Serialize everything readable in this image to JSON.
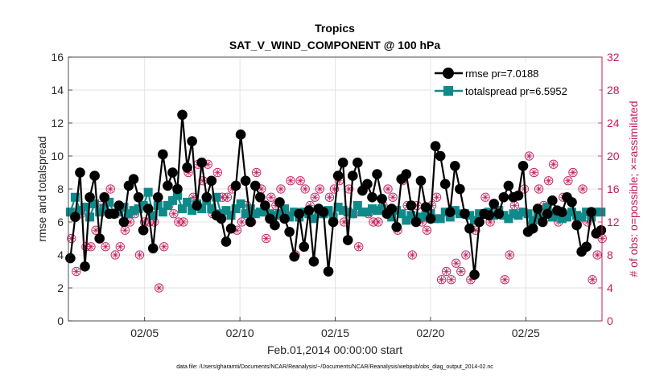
{
  "chart_data": {
    "type": "line",
    "title": "Tropics",
    "subtitle": "SAT_V_WIND_COMPONENT @ 100 hPa",
    "xlabel": "Feb.01,2014 00:00:00 start",
    "ylabel": "rmse and totalspread",
    "y2label": "# of obs: o=possible; ×=assimilated",
    "footnote": "data file: /Users/gharamti/Documents/NCAR/Reanalysis/~/Documents/NCAR/Reanalysis/webpub/obs_diag_output_2014-02.nc",
    "xlim": [
      1,
      29
    ],
    "ylim": [
      0,
      16
    ],
    "y2lim": [
      0,
      32
    ],
    "xticks": [
      5,
      10,
      15,
      20,
      25
    ],
    "xtick_labels": [
      "02/05",
      "02/10",
      "02/15",
      "02/20",
      "02/25"
    ],
    "yticks": [
      "0",
      "2",
      "4",
      "6",
      "8",
      "10",
      "12",
      "14",
      "16"
    ],
    "y2ticks": [
      "0",
      "4",
      "8",
      "12",
      "16",
      "20",
      "24",
      "28",
      "32"
    ],
    "grid": true,
    "legend_position": "top-right",
    "colors": {
      "rmse": "#000000",
      "spread": "#0f8a8a",
      "obs": "#c51b5b"
    },
    "series": [
      {
        "name": "rmse pr=7.0188",
        "values": [
          3.8,
          6.3,
          9.0,
          3.3,
          7.5,
          8.8,
          5.0,
          7.5,
          6.5,
          6.5,
          7.0,
          6.0,
          8.2,
          8.6,
          7.5,
          5.5,
          6.8,
          4.4,
          7.5,
          10.1,
          8.2,
          9.0,
          8.0,
          12.5,
          9.3,
          10.9,
          7.0,
          9.6,
          7.5,
          8.5,
          6.4,
          6.2,
          4.8,
          5.6,
          8.2,
          11.3,
          8.5,
          6.0,
          8.2,
          7.5,
          7.0,
          6.2,
          5.8,
          7.2,
          6.2,
          5.4,
          3.9,
          6.5,
          4.5,
          6.7,
          3.6,
          6.8,
          6.6,
          3.0,
          6.0,
          8.8,
          9.6,
          4.9,
          8.8,
          9.6,
          7.9,
          8.3,
          7.5,
          8.9,
          7.4,
          6.5,
          6.8,
          5.7,
          8.6,
          8.9,
          7.0,
          6.0,
          8.5,
          6.9,
          6.2,
          10.6,
          10.0,
          8.3,
          6.6,
          9.4,
          8.0,
          6.5,
          5.6,
          2.8,
          6.0,
          6.5,
          6.4,
          7.1,
          6.5,
          7.5,
          8.2,
          7.5,
          7.6,
          9.4,
          5.4,
          5.6,
          6.8,
          6.0,
          6.5,
          7.3,
          6.7,
          6.6,
          7.5,
          7.2,
          5.8,
          4.2,
          4.5,
          6.6,
          5.3,
          5.5
        ]
      },
      {
        "name": "totalspread pr=6.5952",
        "values": [
          6.6,
          7.5,
          6.7,
          6.9,
          6.3,
          7.1,
          6.6,
          6.8,
          7.2,
          6.5,
          6.6,
          6.9,
          6.5,
          6.7,
          6.8,
          7.0,
          7.8,
          6.4,
          7.0,
          6.6,
          7.0,
          7.3,
          7.6,
          6.8,
          7.2,
          6.7,
          7.1,
          6.8,
          7.3,
          6.8,
          7.5,
          6.5,
          6.7,
          6.4,
          6.8,
          7.1,
          6.5,
          6.8,
          6.5,
          6.6,
          6.6,
          6.5,
          6.4,
          6.5,
          6.8,
          6.3,
          6.6,
          6.3,
          6.6,
          6.5,
          6.2,
          6.5,
          6.5,
          6.7,
          6.3,
          6.9,
          6.7,
          6.6,
          6.5,
          7.0,
          6.6,
          6.6,
          6.8,
          6.7,
          6.8,
          6.6,
          6.3,
          6.7,
          6.5,
          6.1,
          6.4,
          6.2,
          6.3,
          6.4,
          6.5,
          6.2,
          6.2,
          6.6,
          6.3,
          6.7,
          6.5,
          6.5,
          6.4,
          6.1,
          6.5,
          6.5,
          6.6,
          6.4,
          6.7,
          6.4,
          6.2,
          6.5,
          6.4,
          6.6,
          6.5,
          6.1,
          6.4,
          6.3,
          6.9,
          6.3,
          6.4,
          6.2,
          6.3,
          6.6,
          6.4,
          6.3,
          6.6,
          6.3,
          6.6,
          6.6
        ]
      }
    ],
    "obs_series": {
      "name": "# of obs",
      "axis": "right",
      "values": [
        10,
        6,
        13,
        9,
        9,
        11,
        14,
        9,
        16,
        8,
        9,
        11,
        12,
        13,
        8,
        12,
        12,
        12,
        4,
        9,
        14,
        13,
        12,
        12,
        18,
        15,
        19,
        17,
        19,
        13,
        18,
        15,
        15,
        16,
        11,
        12,
        14,
        12,
        18,
        16,
        10,
        15,
        14,
        16,
        13,
        17,
        8,
        17,
        16,
        14,
        15,
        16,
        13,
        15,
        16,
        17,
        12,
        16,
        13,
        9,
        16,
        13,
        12,
        12,
        14,
        16,
        15,
        11,
        17,
        14,
        8,
        14,
        12,
        11,
        14,
        15,
        5,
        6,
        5,
        7,
        6,
        8,
        5,
        11,
        13,
        15,
        12,
        13,
        13,
        5,
        8,
        14,
        13,
        16,
        20,
        18,
        16,
        14,
        17,
        19,
        12,
        15,
        17,
        18,
        12,
        16,
        12,
        5,
        8,
        10
      ]
    }
  }
}
